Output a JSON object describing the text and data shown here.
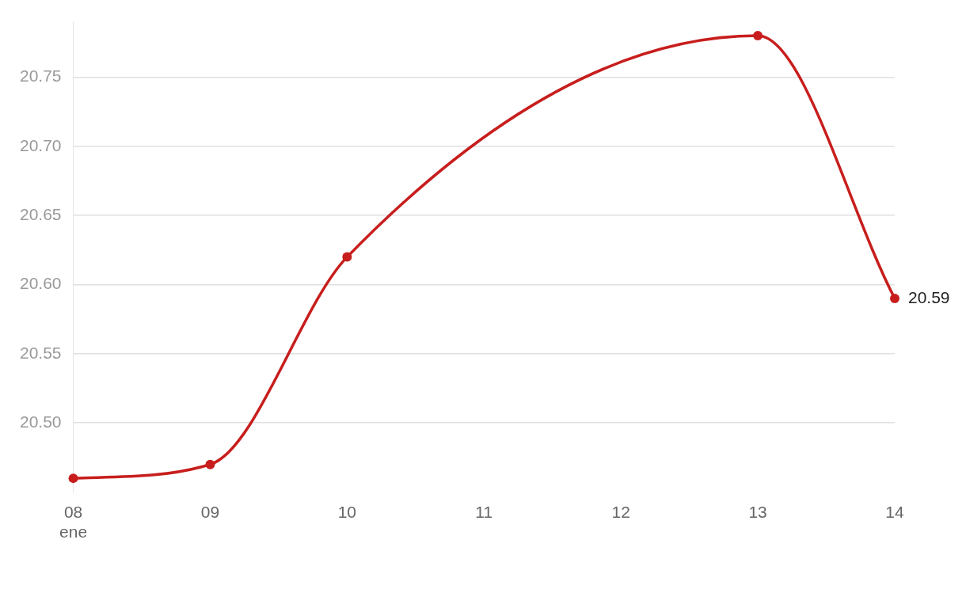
{
  "chart_data": {
    "type": "line",
    "x": [
      "--01-08",
      "--01-09",
      "--01-10",
      "--01-13",
      "--01-14"
    ],
    "series": [
      {
        "color": "#c71e1d",
        "values": [
          20.46,
          20.47,
          20.62,
          20.78,
          20.59
        ],
        "value_labels": [
          null,
          null,
          null,
          null,
          "20.59"
        ]
      }
    ],
    "xlim": [
      "--01-08",
      "--01-14"
    ],
    "xticks": [
      {
        "value": "--01-08",
        "label": "08\nene"
      },
      {
        "value": "--01-09",
        "label": "09"
      },
      {
        "value": "--01-10",
        "label": "10"
      },
      {
        "value": "--01-11",
        "label": "11"
      },
      {
        "value": "--01-12",
        "label": "12"
      },
      {
        "value": "--01-13",
        "label": "13"
      },
      {
        "value": "--01-14",
        "label": "14"
      }
    ],
    "ylim": [
      20.45,
      20.79
    ],
    "yticks": [
      {
        "value": 20.5,
        "label": "20.50"
      },
      {
        "value": 20.55,
        "label": "20.55"
      },
      {
        "value": 20.6,
        "label": "20.60"
      },
      {
        "value": 20.65,
        "label": "20.65"
      },
      {
        "value": 20.7,
        "label": "20.70"
      },
      {
        "value": 20.75,
        "label": "20.75"
      }
    ],
    "grid": "y",
    "marker": "circle",
    "line_style": "solid",
    "legend": false
  }
}
